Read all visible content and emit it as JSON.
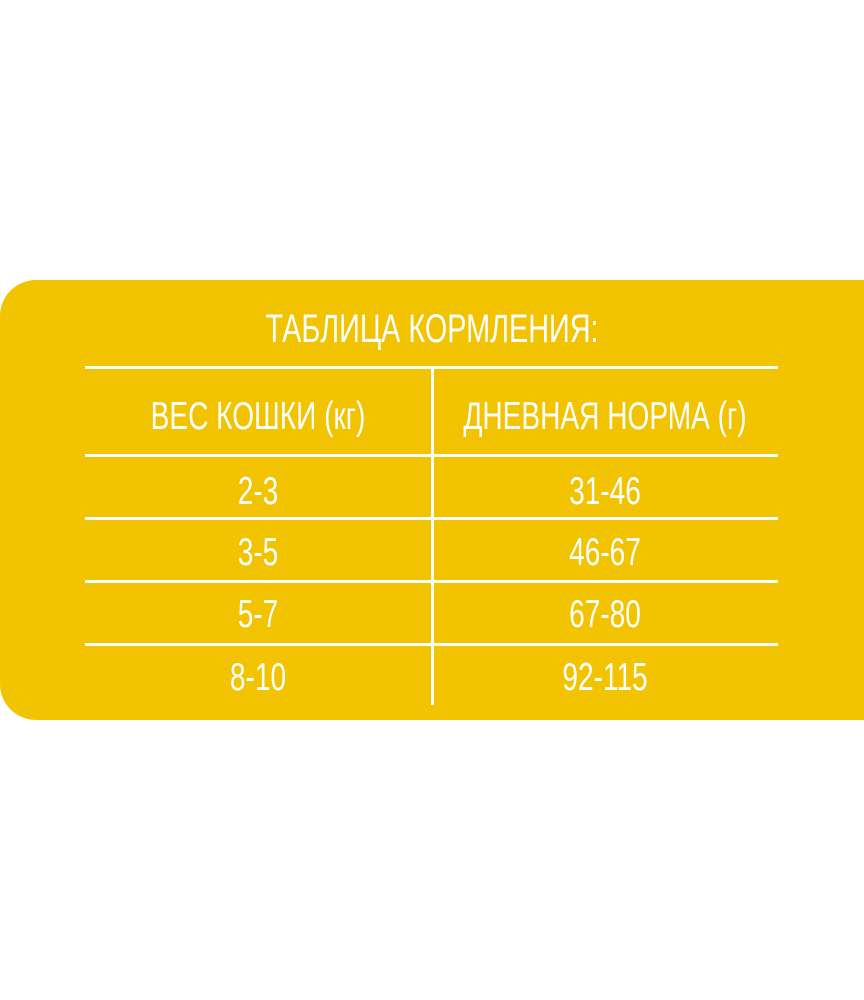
{
  "title": "ТАБЛИЦА КОРМЛЕНИЯ:",
  "colors": {
    "panel": "#F2C300",
    "text": "#FFFFFF"
  },
  "table": {
    "headers": [
      "ВЕС КОШКИ (кг)",
      "ДНЕВНАЯ НОРМА (г)"
    ],
    "rows": [
      [
        "2-3",
        "31-46"
      ],
      [
        "3-5",
        "46-67"
      ],
      [
        "5-7",
        "67-80"
      ],
      [
        "8-10",
        "92-115"
      ]
    ]
  }
}
